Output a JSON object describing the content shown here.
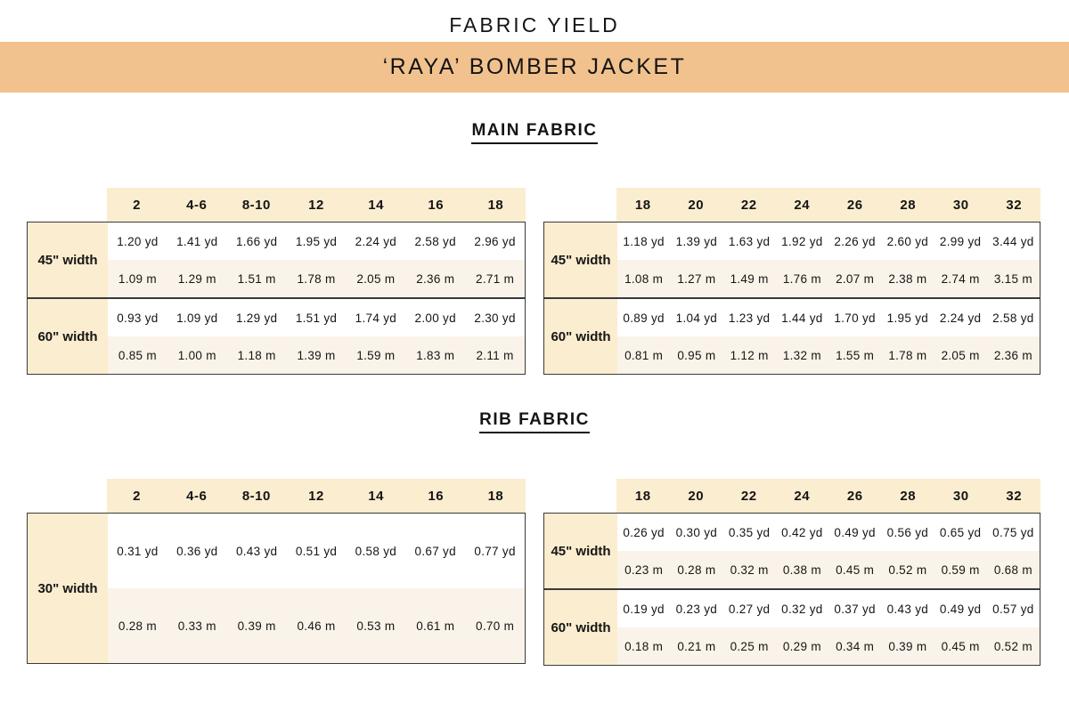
{
  "page": {
    "title": "FABRIC YIELD",
    "banner": "‘RAYA’ BOMBER JACKET"
  },
  "colors": {
    "banner": "#F2C28E",
    "header_cream": "#FBEDCF",
    "row_alt_cream": "#FAF3E9",
    "border": "#3a3a3a",
    "text": "#151515"
  },
  "sections": {
    "main": {
      "heading": "MAIN FABRIC"
    },
    "rib": {
      "heading": "RIB FABRIC"
    }
  },
  "tables": {
    "main_small": {
      "sizes": [
        "2",
        "4-6",
        "8-10",
        "12",
        "14",
        "16",
        "18"
      ],
      "rows": [
        {
          "label": "45\" width",
          "yd": [
            "1.20 yd",
            "1.41 yd",
            "1.66 yd",
            "1.95 yd",
            "2.24 yd",
            "2.58 yd",
            "2.96 yd"
          ],
          "m": [
            "1.09 m",
            "1.29 m",
            "1.51 m",
            "1.78 m",
            "2.05 m",
            "2.36 m",
            "2.71 m"
          ]
        },
        {
          "label": "60\" width",
          "yd": [
            "0.93 yd",
            "1.09 yd",
            "1.29 yd",
            "1.51 yd",
            "1.74 yd",
            "2.00 yd",
            "2.30 yd"
          ],
          "m": [
            "0.85 m",
            "1.00 m",
            "1.18 m",
            "1.39 m",
            "1.59 m",
            "1.83 m",
            "2.11 m"
          ]
        }
      ]
    },
    "main_large": {
      "sizes": [
        "18",
        "20",
        "22",
        "24",
        "26",
        "28",
        "30",
        "32"
      ],
      "rows": [
        {
          "label": "45\" width",
          "yd": [
            "1.18 yd",
            "1.39 yd",
            "1.63 yd",
            "1.92 yd",
            "2.26 yd",
            "2.60 yd",
            "2.99 yd",
            "3.44 yd"
          ],
          "m": [
            "1.08 m",
            "1.27 m",
            "1.49 m",
            "1.76 m",
            "2.07 m",
            "2.38 m",
            "2.74 m",
            "3.15 m"
          ]
        },
        {
          "label": "60\" width",
          "yd": [
            "0.89 yd",
            "1.04 yd",
            "1.23 yd",
            "1.44 yd",
            "1.70 yd",
            "1.95 yd",
            "2.24 yd",
            "2.58 yd"
          ],
          "m": [
            "0.81 m",
            "0.95 m",
            "1.12 m",
            "1.32 m",
            "1.55 m",
            "1.78 m",
            "2.05 m",
            "2.36 m"
          ]
        }
      ]
    },
    "rib_small": {
      "sizes": [
        "2",
        "4-6",
        "8-10",
        "12",
        "14",
        "16",
        "18"
      ],
      "rows": [
        {
          "label": "30\" width",
          "yd": [
            "0.31 yd",
            "0.36 yd",
            "0.43 yd",
            "0.51 yd",
            "0.58 yd",
            "0.67 yd",
            "0.77 yd"
          ],
          "m": [
            "0.28 m",
            "0.33 m",
            "0.39 m",
            "0.46 m",
            "0.53 m",
            "0.61 m",
            "0.70 m"
          ]
        }
      ]
    },
    "rib_large": {
      "sizes": [
        "18",
        "20",
        "22",
        "24",
        "26",
        "28",
        "30",
        "32"
      ],
      "rows": [
        {
          "label": "45\" width",
          "yd": [
            "0.26 yd",
            "0.30 yd",
            "0.35 yd",
            "0.42 yd",
            "0.49 yd",
            "0.56 yd",
            "0.65 yd",
            "0.75 yd"
          ],
          "m": [
            "0.23 m",
            "0.28 m",
            "0.32 m",
            "0.38 m",
            "0.45 m",
            "0.52 m",
            "0.59 m",
            "0.68 m"
          ]
        },
        {
          "label": "60\" width",
          "yd": [
            "0.19 yd",
            "0.23 yd",
            "0.27 yd",
            "0.32 yd",
            "0.37 yd",
            "0.43 yd",
            "0.49 yd",
            "0.57 yd"
          ],
          "m": [
            "0.18 m",
            "0.21 m",
            "0.25 m",
            "0.29 m",
            "0.34 m",
            "0.39 m",
            "0.45 m",
            "0.52 m"
          ]
        }
      ]
    }
  }
}
